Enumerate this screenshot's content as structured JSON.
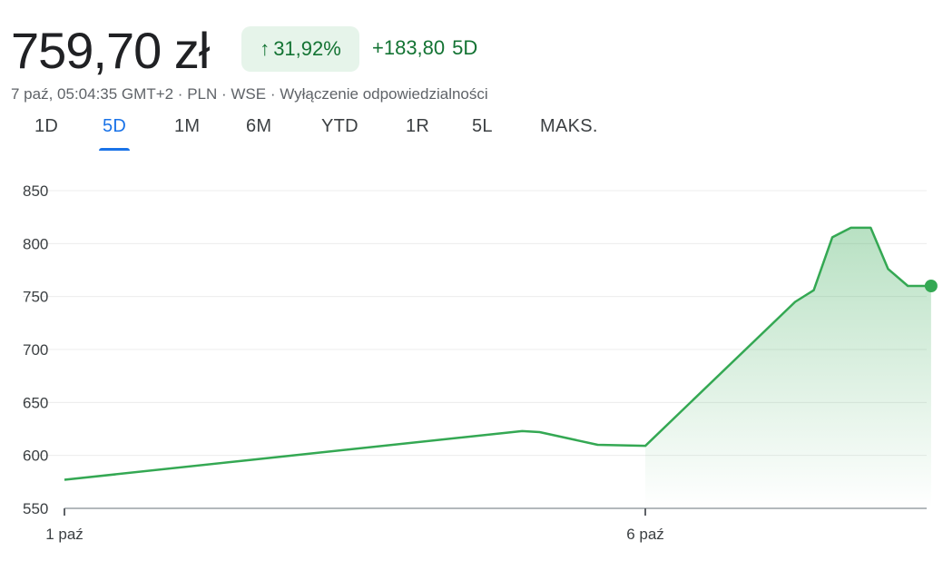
{
  "quote": {
    "price": "759,70 zł",
    "change_pct": "31,92%",
    "change_abs": "+183,80",
    "change_period": "5D",
    "meta": "7 paź, 05:04:35 GMT+2 · PLN · WSE · Wyłączenie odpowiedzialności",
    "up_color": "#34a853"
  },
  "tabs": [
    {
      "label": "1D",
      "active": false
    },
    {
      "label": "5D",
      "active": true
    },
    {
      "label": "1M",
      "active": false
    },
    {
      "label": "6M",
      "active": false
    },
    {
      "label": "YTD",
      "active": false
    },
    {
      "label": "1R",
      "active": false
    },
    {
      "label": "5L",
      "active": false
    },
    {
      "label": "MAKS.",
      "active": false
    }
  ],
  "chart_data": {
    "type": "area",
    "y_ticks": [
      "850",
      "800",
      "750",
      "700",
      "650",
      "600",
      "550"
    ],
    "ylim": [
      550,
      850
    ],
    "x_ticks": [
      "1 paź",
      "6 paź"
    ],
    "grid": true,
    "series": [
      {
        "x": [
          0,
          3.94,
          4.09,
          4.59,
          5.0,
          6.29,
          6.45,
          6.61,
          6.77,
          6.94,
          7.09,
          7.26,
          7.36,
          7.46
        ],
        "values": [
          577,
          623,
          622,
          610,
          609,
          745,
          756,
          806,
          815,
          815,
          776,
          760,
          760,
          760
        ]
      }
    ]
  }
}
